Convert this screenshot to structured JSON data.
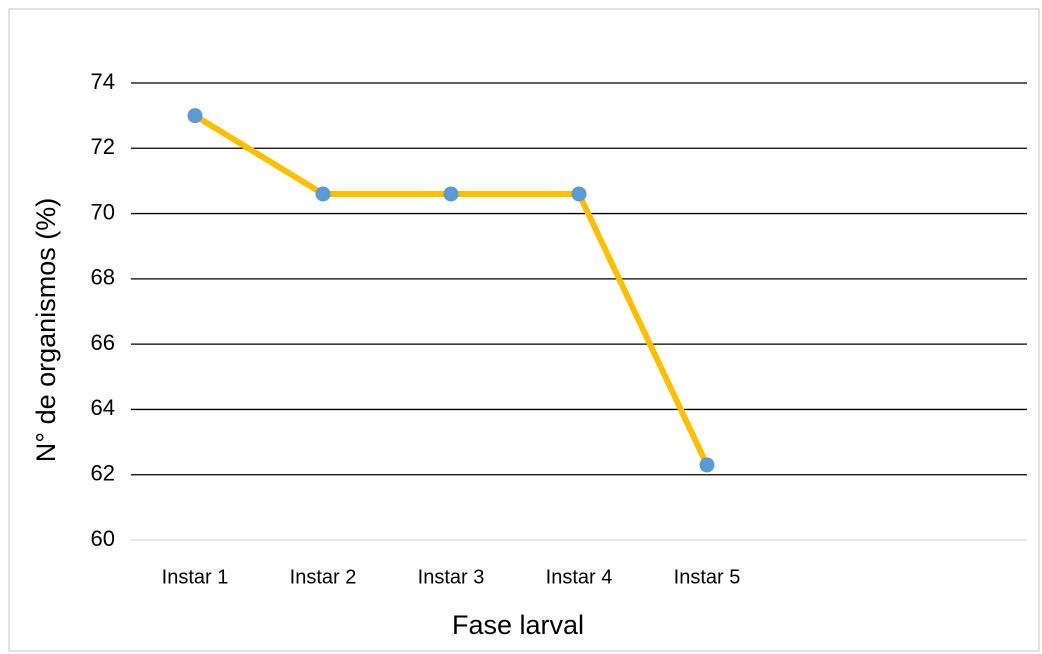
{
  "chart_data": {
    "type": "line",
    "x_label": "Fase larval",
    "y_label": "N° de organismos (%)",
    "categories": [
      "Instar 1",
      "Instar 2",
      "Instar 3",
      "Instar 4",
      "Instar 5",
      null,
      null
    ],
    "series": [
      {
        "name": "N° de organismos",
        "color": "#ffc000",
        "marker_color": "#5b9bd5",
        "values": [
          73,
          70.6,
          70.6,
          70.6,
          62.3,
          null,
          null
        ]
      }
    ],
    "ylim": [
      60,
      74
    ],
    "yticks": [
      60,
      62,
      64,
      66,
      68,
      70,
      72,
      74
    ],
    "grid": true
  }
}
